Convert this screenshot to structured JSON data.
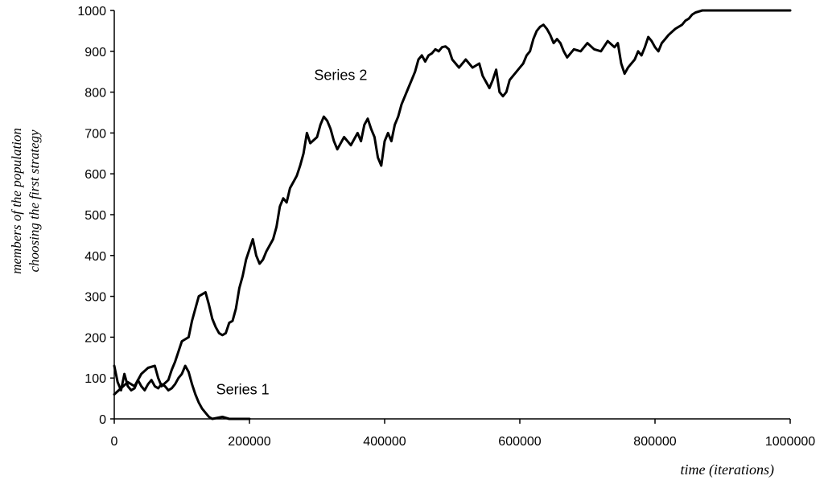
{
  "chart_data": {
    "type": "line",
    "xlabel": "time (iterations)",
    "ylabel_lines": [
      "members of the population",
      "choosing the first strategy"
    ],
    "xlim": [
      0,
      1000000
    ],
    "ylim": [
      0,
      1000
    ],
    "x_ticks": [
      0,
      200000,
      400000,
      600000,
      800000,
      1000000
    ],
    "y_ticks": [
      0,
      100,
      200,
      300,
      400,
      500,
      600,
      700,
      800,
      900,
      1000
    ],
    "x_tick_labels": [
      "0",
      "200000",
      "400000",
      "600000",
      "800000",
      "1000000"
    ],
    "y_tick_labels": [
      "0",
      "100",
      "200",
      "300",
      "400",
      "500",
      "600",
      "700",
      "800",
      "900",
      "1000"
    ],
    "grid": false,
    "line_color": "#000000",
    "series": [
      {
        "name": "Series 1",
        "label_anchor": [
          190000,
          60
        ],
        "points": [
          [
            0,
            130
          ],
          [
            5000,
            90
          ],
          [
            10000,
            70
          ],
          [
            15000,
            110
          ],
          [
            20000,
            80
          ],
          [
            25000,
            70
          ],
          [
            30000,
            75
          ],
          [
            35000,
            95
          ],
          [
            40000,
            80
          ],
          [
            45000,
            70
          ],
          [
            50000,
            85
          ],
          [
            55000,
            95
          ],
          [
            60000,
            80
          ],
          [
            65000,
            75
          ],
          [
            70000,
            85
          ],
          [
            75000,
            80
          ],
          [
            80000,
            70
          ],
          [
            85000,
            75
          ],
          [
            90000,
            85
          ],
          [
            95000,
            100
          ],
          [
            100000,
            110
          ],
          [
            105000,
            130
          ],
          [
            110000,
            115
          ],
          [
            115000,
            85
          ],
          [
            120000,
            60
          ],
          [
            125000,
            40
          ],
          [
            130000,
            25
          ],
          [
            135000,
            15
          ],
          [
            140000,
            5
          ],
          [
            145000,
            0
          ],
          [
            160000,
            5
          ],
          [
            170000,
            0
          ],
          [
            200000,
            0
          ]
        ]
      },
      {
        "name": "Series 2",
        "label_anchor": [
          335000,
          830
        ],
        "points": [
          [
            0,
            60
          ],
          [
            10000,
            75
          ],
          [
            20000,
            90
          ],
          [
            30000,
            80
          ],
          [
            40000,
            110
          ],
          [
            50000,
            125
          ],
          [
            60000,
            130
          ],
          [
            65000,
            100
          ],
          [
            70000,
            80
          ],
          [
            80000,
            95
          ],
          [
            85000,
            120
          ],
          [
            90000,
            140
          ],
          [
            95000,
            165
          ],
          [
            100000,
            190
          ],
          [
            110000,
            200
          ],
          [
            115000,
            240
          ],
          [
            120000,
            270
          ],
          [
            125000,
            300
          ],
          [
            130000,
            305
          ],
          [
            135000,
            310
          ],
          [
            140000,
            280
          ],
          [
            145000,
            245
          ],
          [
            150000,
            225
          ],
          [
            155000,
            210
          ],
          [
            160000,
            205
          ],
          [
            165000,
            210
          ],
          [
            170000,
            235
          ],
          [
            175000,
            240
          ],
          [
            180000,
            270
          ],
          [
            185000,
            320
          ],
          [
            190000,
            350
          ],
          [
            195000,
            390
          ],
          [
            200000,
            415
          ],
          [
            205000,
            440
          ],
          [
            210000,
            400
          ],
          [
            215000,
            380
          ],
          [
            220000,
            390
          ],
          [
            225000,
            410
          ],
          [
            230000,
            425
          ],
          [
            235000,
            440
          ],
          [
            240000,
            470
          ],
          [
            245000,
            520
          ],
          [
            250000,
            540
          ],
          [
            255000,
            530
          ],
          [
            260000,
            565
          ],
          [
            265000,
            580
          ],
          [
            270000,
            595
          ],
          [
            275000,
            620
          ],
          [
            280000,
            650
          ],
          [
            285000,
            700
          ],
          [
            290000,
            675
          ],
          [
            300000,
            690
          ],
          [
            305000,
            720
          ],
          [
            310000,
            740
          ],
          [
            315000,
            730
          ],
          [
            320000,
            710
          ],
          [
            325000,
            680
          ],
          [
            330000,
            660
          ],
          [
            340000,
            690
          ],
          [
            350000,
            670
          ],
          [
            360000,
            700
          ],
          [
            365000,
            680
          ],
          [
            370000,
            720
          ],
          [
            375000,
            735
          ],
          [
            380000,
            710
          ],
          [
            385000,
            690
          ],
          [
            390000,
            640
          ],
          [
            395000,
            620
          ],
          [
            400000,
            680
          ],
          [
            405000,
            700
          ],
          [
            410000,
            680
          ],
          [
            415000,
            720
          ],
          [
            420000,
            740
          ],
          [
            425000,
            770
          ],
          [
            430000,
            790
          ],
          [
            435000,
            810
          ],
          [
            440000,
            830
          ],
          [
            445000,
            850
          ],
          [
            450000,
            880
          ],
          [
            455000,
            890
          ],
          [
            460000,
            875
          ],
          [
            465000,
            890
          ],
          [
            470000,
            895
          ],
          [
            475000,
            905
          ],
          [
            480000,
            900
          ],
          [
            485000,
            910
          ],
          [
            490000,
            912
          ],
          [
            495000,
            905
          ],
          [
            500000,
            880
          ],
          [
            505000,
            870
          ],
          [
            510000,
            860
          ],
          [
            520000,
            880
          ],
          [
            530000,
            860
          ],
          [
            540000,
            870
          ],
          [
            545000,
            840
          ],
          [
            550000,
            825
          ],
          [
            555000,
            810
          ],
          [
            560000,
            830
          ],
          [
            565000,
            855
          ],
          [
            570000,
            800
          ],
          [
            575000,
            790
          ],
          [
            580000,
            800
          ],
          [
            585000,
            830
          ],
          [
            590000,
            840
          ],
          [
            595000,
            850
          ],
          [
            600000,
            860
          ],
          [
            605000,
            870
          ],
          [
            610000,
            890
          ],
          [
            615000,
            900
          ],
          [
            620000,
            930
          ],
          [
            625000,
            950
          ],
          [
            630000,
            960
          ],
          [
            635000,
            965
          ],
          [
            640000,
            955
          ],
          [
            645000,
            940
          ],
          [
            650000,
            920
          ],
          [
            655000,
            930
          ],
          [
            660000,
            920
          ],
          [
            665000,
            900
          ],
          [
            670000,
            885
          ],
          [
            680000,
            905
          ],
          [
            690000,
            900
          ],
          [
            700000,
            920
          ],
          [
            710000,
            905
          ],
          [
            720000,
            900
          ],
          [
            730000,
            925
          ],
          [
            740000,
            910
          ],
          [
            745000,
            920
          ],
          [
            750000,
            870
          ],
          [
            755000,
            845
          ],
          [
            760000,
            860
          ],
          [
            770000,
            880
          ],
          [
            775000,
            900
          ],
          [
            780000,
            890
          ],
          [
            785000,
            910
          ],
          [
            790000,
            935
          ],
          [
            795000,
            925
          ],
          [
            800000,
            910
          ],
          [
            805000,
            900
          ],
          [
            810000,
            920
          ],
          [
            815000,
            930
          ],
          [
            820000,
            940
          ],
          [
            830000,
            955
          ],
          [
            840000,
            965
          ],
          [
            845000,
            975
          ],
          [
            850000,
            980
          ],
          [
            855000,
            990
          ],
          [
            860000,
            995
          ],
          [
            870000,
            1000
          ],
          [
            1000000,
            1000
          ]
        ]
      }
    ]
  }
}
